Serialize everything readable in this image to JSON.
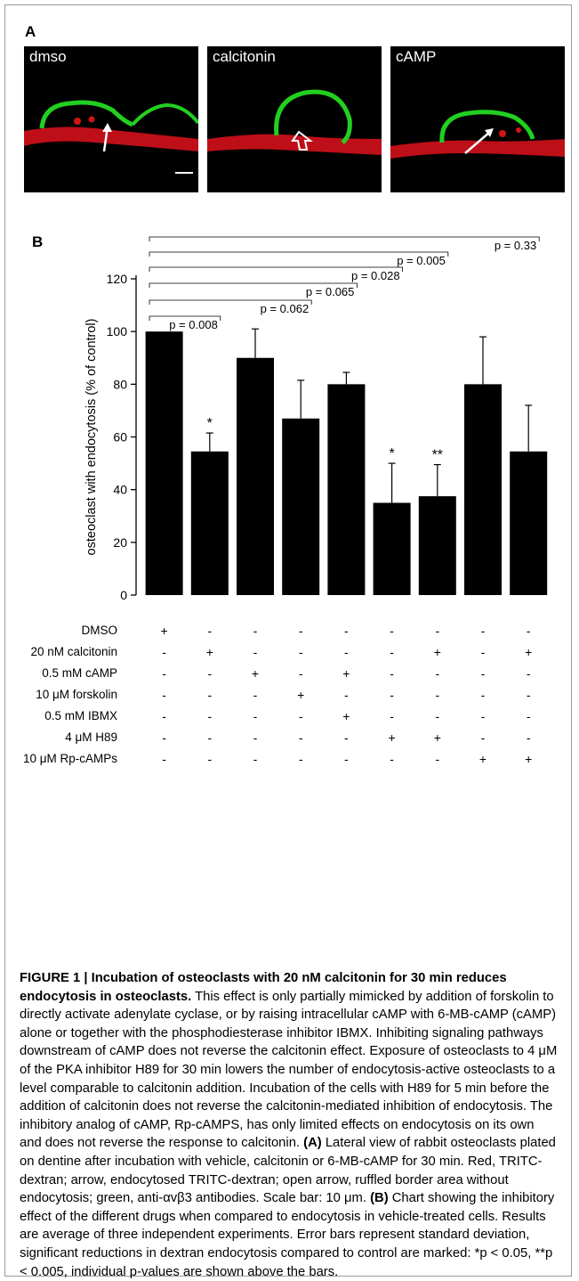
{
  "panel_a": {
    "label": "A",
    "images": [
      {
        "label": "dmso",
        "annotation": "arrow"
      },
      {
        "label": "calcitonin",
        "annotation": "open arrow"
      },
      {
        "label": "cAMP",
        "annotation": "arrow"
      }
    ]
  },
  "panel_b": {
    "label": "B",
    "treatments": {
      "rows": [
        {
          "label": "DMSO",
          "signs": [
            "+",
            "-",
            "-",
            "-",
            "-",
            "-",
            "-",
            "-",
            "-"
          ]
        },
        {
          "label": "20 nM calcitonin",
          "signs": [
            "-",
            "+",
            "-",
            "-",
            "-",
            "-",
            "+",
            "-",
            "+"
          ]
        },
        {
          "label": "0.5 mM cAMP",
          "signs": [
            "-",
            "-",
            "+",
            "-",
            "+",
            "-",
            "-",
            "-",
            "-"
          ]
        },
        {
          "label": "10 μM forskolin",
          "signs": [
            "-",
            "-",
            "-",
            "+",
            "-",
            "-",
            "-",
            "-",
            "-"
          ]
        },
        {
          "label": "0.5 mM IBMX",
          "signs": [
            "-",
            "-",
            "-",
            "-",
            "+",
            "-",
            "-",
            "-",
            "-"
          ]
        },
        {
          "label": "4 μM H89",
          "signs": [
            "-",
            "-",
            "-",
            "-",
            "-",
            "+",
            "+",
            "-",
            "-"
          ]
        },
        {
          "label": "10 μM Rp-cAMPs",
          "signs": [
            "-",
            "-",
            "-",
            "-",
            "-",
            "-",
            "-",
            "+",
            "+"
          ]
        }
      ]
    }
  },
  "chart_data": {
    "type": "bar",
    "ylabel": "osteoclast with endocytosis (% of control)",
    "ylim": [
      0,
      120
    ],
    "yticks": [
      0,
      20,
      40,
      60,
      80,
      100,
      120
    ],
    "values": [
      100,
      54.5,
      90,
      67,
      80,
      35,
      37.5,
      80,
      54.5
    ],
    "errors": [
      0,
      7,
      11,
      14.5,
      4.5,
      15,
      12,
      18,
      17.5
    ],
    "significance": [
      "",
      "*",
      "",
      "",
      "",
      "*",
      "**",
      "",
      ""
    ],
    "comparisons": [
      {
        "to_bar": 2,
        "text": "p = 0.008"
      },
      {
        "to_bar": 4,
        "text": "p = 0.062"
      },
      {
        "to_bar": 5,
        "text": "p = 0.065"
      },
      {
        "to_bar": 6,
        "text": "p = 0.028"
      },
      {
        "to_bar": 7,
        "text": "p = 0.005"
      },
      {
        "to_bar": 9,
        "text": "p = 0.33"
      }
    ]
  },
  "caption": {
    "title": "FIGURE 1 | Incubation of osteoclasts with 20 nM calcitonin for 30 min reduces endocytosis in osteoclasts.",
    "body_1": " This effect is only partially mimicked by addition of forskolin to directly activate adenylate cyclase, or by raising intracellular cAMP with 6-MB-cAMP (cAMP) alone or together with the phosphodiesterase inhibitor IBMX. Inhibiting signaling pathways downstream of cAMP does not reverse the calcitonin effect. Exposure of osteoclasts to 4 μM of the PKA inhibitor H89 for 30 min lowers the number of endocytosis-active osteoclasts to a level comparable to calcitonin addition. Incubation of the cells with H89 for 5 min before the addition of calcitonin does not reverse the calcitonin-mediated inhibition of endocytosis. The inhibitory analog of cAMP, Rp-cAMPS, has only limited effects on endocytosis on its own and does not reverse the response to calcitonin. ",
    "label_a": "(A)",
    "body_a": " Lateral view of rabbit osteoclasts plated on dentine after incubation with vehicle, calcitonin or 6-MB-cAMP for 30 min. Red, TRITC-dextran; arrow, endocytosed TRITC-dextran; open arrow, ruffled border area without endocytosis; green, anti-αvβ3 antibodies. Scale bar: 10 μm. ",
    "label_b": "(B)",
    "body_b": " Chart showing the inhibitory effect of the different drugs when compared to endocytosis in vehicle-treated cells. Results are average of three independent experiments. Error bars represent standard deviation, significant reductions in dextran endocytosis compared to control are marked: *p < 0.05, **p < 0.005, individual p-values are shown above the bars."
  }
}
